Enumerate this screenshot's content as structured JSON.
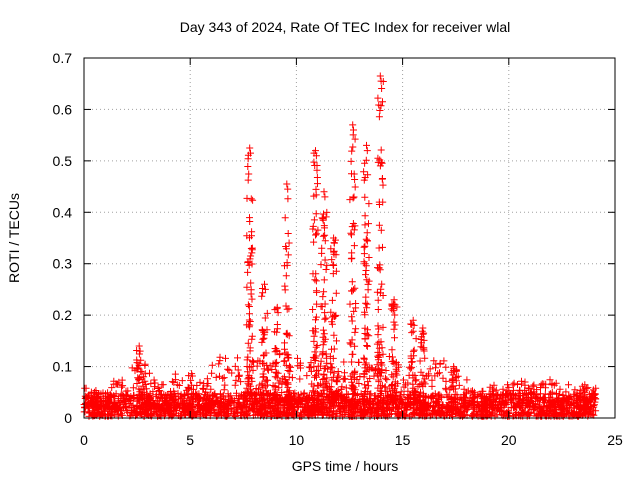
{
  "chart_data": {
    "type": "scatter",
    "title": "Day 343 of 2024, Rate Of TEC Index for receiver wlal",
    "xlabel": "GPS time / hours",
    "ylabel": "ROTI / TECUs",
    "xlim": [
      0,
      25
    ],
    "ylim": [
      0,
      0.7
    ],
    "xticks": [
      0,
      5,
      10,
      15,
      20,
      25
    ],
    "yticks": [
      0,
      0.1,
      0.2,
      0.3,
      0.4,
      0.5,
      0.6,
      0.7
    ],
    "grid": true,
    "marker": "+",
    "series_color": "#ff0000",
    "noise_floor": {
      "x_range": [
        0,
        24.1
      ],
      "typical_range": [
        0.0,
        0.045
      ],
      "description": "dense band of samples across the whole day"
    },
    "envelope": [
      {
        "x": 0.0,
        "upper": 0.06
      },
      {
        "x": 1.0,
        "upper": 0.05
      },
      {
        "x": 2.6,
        "upper": 0.14
      },
      {
        "x": 3.5,
        "upper": 0.065
      },
      {
        "x": 4.2,
        "upper": 0.085
      },
      {
        "x": 5.5,
        "upper": 0.09
      },
      {
        "x": 6.3,
        "upper": 0.11
      },
      {
        "x": 7.8,
        "upper": 0.525
      },
      {
        "x": 8.5,
        "upper": 0.26
      },
      {
        "x": 9.0,
        "upper": 0.215
      },
      {
        "x": 9.6,
        "upper": 0.455
      },
      {
        "x": 10.5,
        "upper": 0.25
      },
      {
        "x": 10.9,
        "upper": 0.52
      },
      {
        "x": 11.2,
        "upper": 0.44
      },
      {
        "x": 11.8,
        "upper": 0.35
      },
      {
        "x": 12.7,
        "upper": 0.57
      },
      {
        "x": 13.3,
        "upper": 0.52
      },
      {
        "x": 14.0,
        "upper": 0.665
      },
      {
        "x": 14.6,
        "upper": 0.23
      },
      {
        "x": 15.5,
        "upper": 0.19
      },
      {
        "x": 16.0,
        "upper": 0.17
      },
      {
        "x": 17.4,
        "upper": 0.1
      },
      {
        "x": 18.5,
        "upper": 0.06
      },
      {
        "x": 20.3,
        "upper": 0.07
      },
      {
        "x": 21.7,
        "upper": 0.08
      },
      {
        "x": 23.2,
        "upper": 0.06
      },
      {
        "x": 24.0,
        "upper": 0.07
      }
    ],
    "spikes": [
      {
        "x": 2.6,
        "peak": 0.14
      },
      {
        "x": 7.8,
        "peak": 0.525
      },
      {
        "x": 8.5,
        "peak": 0.26
      },
      {
        "x": 9.1,
        "peak": 0.215
      },
      {
        "x": 9.55,
        "peak": 0.455
      },
      {
        "x": 10.9,
        "peak": 0.52
      },
      {
        "x": 11.3,
        "peak": 0.44
      },
      {
        "x": 11.75,
        "peak": 0.35
      },
      {
        "x": 12.65,
        "peak": 0.57
      },
      {
        "x": 13.3,
        "peak": 0.53
      },
      {
        "x": 13.95,
        "peak": 0.665
      },
      {
        "x": 14.6,
        "peak": 0.23
      },
      {
        "x": 15.5,
        "peak": 0.19
      },
      {
        "x": 15.95,
        "peak": 0.175
      },
      {
        "x": 17.4,
        "peak": 0.1
      }
    ]
  }
}
